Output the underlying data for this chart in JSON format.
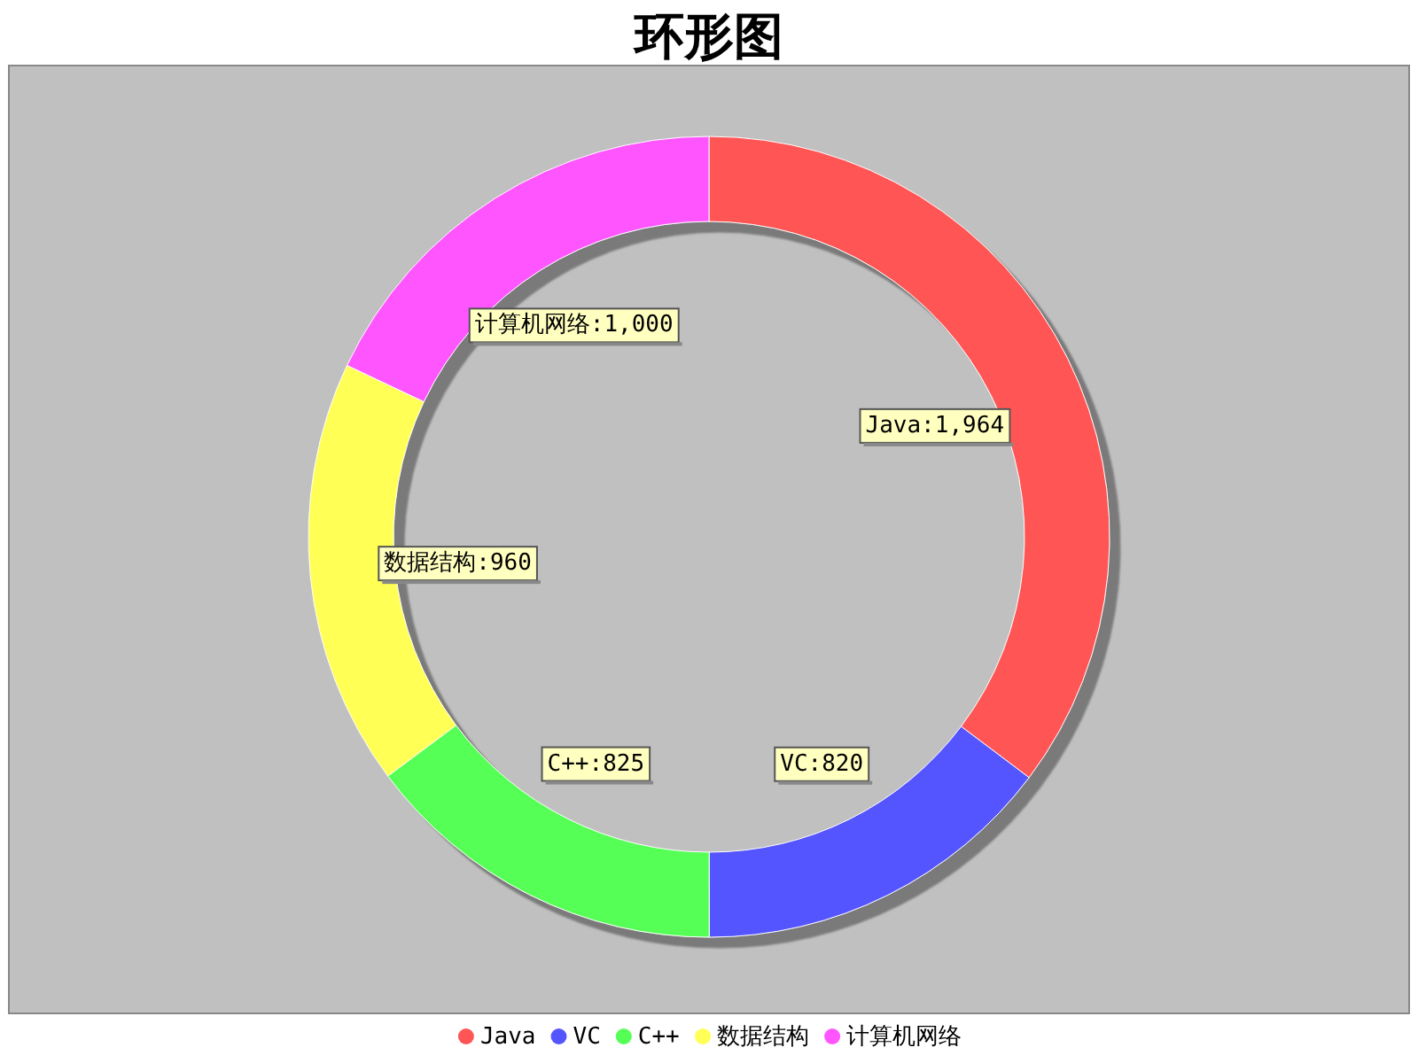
{
  "chart_data": {
    "type": "donut",
    "title": "环形图",
    "categories": [
      "Java",
      "VC",
      "C++",
      "数据结构",
      "计算机网络"
    ],
    "values": [
      1964,
      820,
      825,
      960,
      1000
    ],
    "colors": [
      "#ff5555",
      "#5555ff",
      "#55ff55",
      "#ffff55",
      "#ff55ff"
    ],
    "value_labels": [
      "Java:1,964",
      "VC:820",
      "C++:825",
      "数据结构:960",
      "计算机网络:1,000"
    ],
    "legend": "bottom"
  }
}
